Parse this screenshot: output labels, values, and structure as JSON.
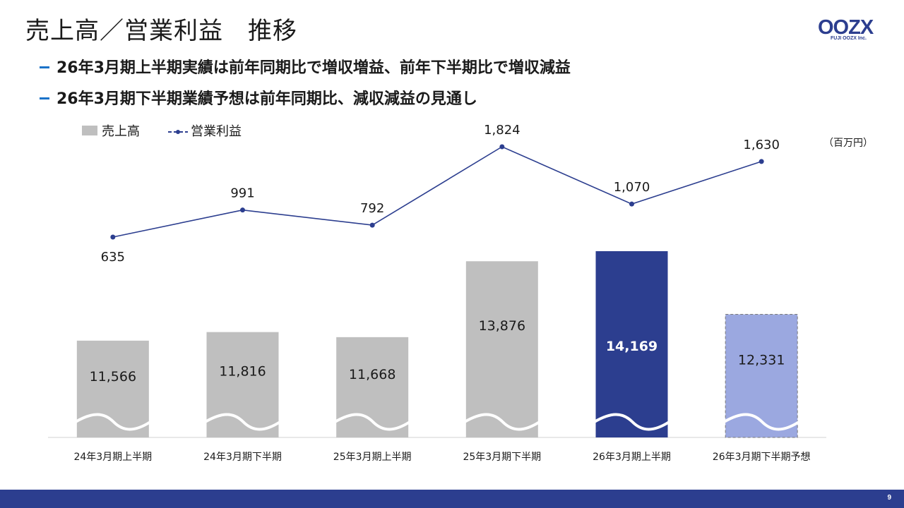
{
  "page": {
    "title": "売上高／営業利益　推移",
    "logo_text": "OOZX",
    "logo_sub": "FUJI OOZX Inc.",
    "page_number": "9"
  },
  "bullets": [
    "26年3月期上半期実績は前年同期比で増収増益、前年下半期比で増収減益",
    "26年3月期下半期業績予想は前年同期比、減収減益の見通し"
  ],
  "colors": {
    "bar_default": "#bfbfbf",
    "bar_highlight": "#2c3e8f",
    "bar_forecast": "#9ba8e0",
    "line": "#2c3e8f",
    "accent_dash": "#1a73c9"
  },
  "chart_data": {
    "type": "bar+line",
    "unit": "（百万円）",
    "categories": [
      "24年3月期上半期",
      "24年3月期下半期",
      "25年3月期上半期",
      "25年3月期下半期",
      "26年3月期上半期",
      "26年3月期下半期予想"
    ],
    "series": [
      {
        "name": "売上高",
        "type": "bar",
        "values": [
          11566,
          11816,
          11668,
          13876,
          14169,
          12331
        ],
        "labels": [
          "11,566",
          "11,816",
          "11,668",
          "13,876",
          "14,169",
          "12,331"
        ],
        "styles": [
          "default",
          "default",
          "default",
          "default",
          "highlight",
          "forecast"
        ],
        "axis_break": true
      },
      {
        "name": "営業利益",
        "type": "line",
        "values": [
          635,
          991,
          792,
          1824,
          1070,
          1630
        ],
        "labels": [
          "635",
          "991",
          "792",
          "1,824",
          "1,070",
          "1,630"
        ]
      }
    ]
  }
}
